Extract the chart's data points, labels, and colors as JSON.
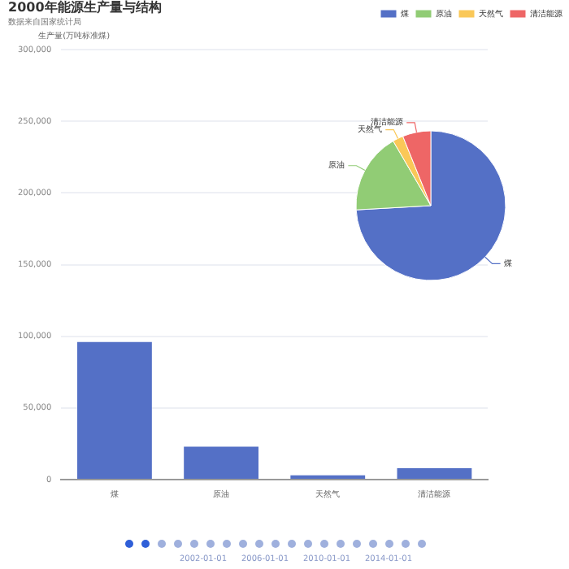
{
  "chart_data": [
    {
      "type": "bar",
      "title": "2000年能源生产量与结构",
      "subtitle": "数据来自国家统计局",
      "ylabel": "生产量(万吨标准煤)",
      "categories": [
        "煤",
        "原油",
        "天然气",
        "清洁能源"
      ],
      "values": [
        96000,
        23000,
        3000,
        8000
      ],
      "color": "#5470c6",
      "ylim": [
        0,
        300000
      ],
      "yticks": [
        0,
        {
          "value": 50000,
          "label": "50,000"
        },
        {
          "value": 100000,
          "label": "100,000"
        },
        {
          "value": 150000,
          "label": "150,000"
        },
        {
          "value": 200000,
          "label": "200,000"
        },
        {
          "value": 250000,
          "label": "250,000"
        },
        {
          "value": 300000,
          "label": "300,000"
        }
      ],
      "grid": "y",
      "annotations": [
        "2002-01-01",
        "2006-01-01",
        "2010-01-01",
        "2014-01-01"
      ]
    },
    {
      "type": "pie",
      "categories": [
        "煤",
        "原油",
        "天然气",
        "清洁能源"
      ],
      "values": [
        74.1,
        17.5,
        2.3,
        6.1
      ],
      "colors": [
        "#5470c6",
        "#91cc75",
        "#fac858",
        "#ee6666"
      ],
      "legend": "top right"
    }
  ]
}
